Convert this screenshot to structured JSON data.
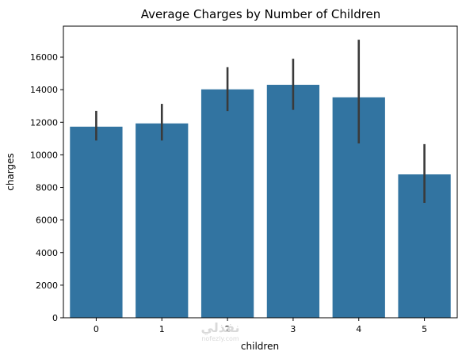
{
  "chart_data": {
    "type": "bar",
    "title": "Average Charges by Number of Children",
    "xlabel": "children",
    "ylabel": "charges",
    "categories": [
      "0",
      "1",
      "2",
      "3",
      "4",
      "5"
    ],
    "values": [
      11730,
      11930,
      14020,
      14300,
      13530,
      8800
    ],
    "error_low": [
      10880,
      10880,
      12690,
      12760,
      10700,
      7050
    ],
    "error_high": [
      12700,
      13130,
      15380,
      15900,
      17070,
      10660
    ],
    "ylim": [
      0,
      17900
    ],
    "yticks": [
      0,
      2000,
      4000,
      6000,
      8000,
      10000,
      12000,
      14000,
      16000
    ],
    "grid": false,
    "bar_color": "#3274a1",
    "error_color": "#3a3a3a"
  },
  "watermark": {
    "main": "نفذلي",
    "sub": "nofezly.com"
  }
}
